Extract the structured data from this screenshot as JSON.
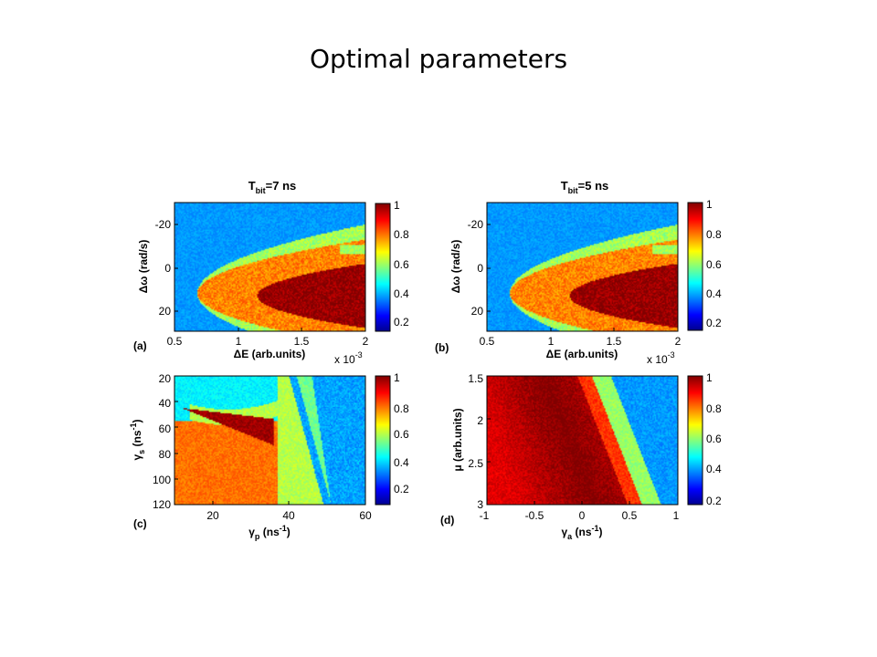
{
  "slide": {
    "title": "Optimal parameters"
  },
  "colormap": {
    "stops": [
      "#00008f",
      "#0000ff",
      "#00ffff",
      "#ffff00",
      "#ff0000",
      "#800000"
    ],
    "ticks": [
      "0.2",
      "0.4",
      "0.6",
      "0.8",
      "1"
    ]
  },
  "chart_data": [
    {
      "type": "heatmap",
      "panel_label": "(a)",
      "title_main": "T",
      "title_sub": "bit",
      "title_rest": "=7 ns",
      "xlabel": "ΔE (arb.units)",
      "ylabel": "Δω (rad/s)",
      "x_multiplier_base": "x 10",
      "x_multiplier_exp": "-3",
      "xlim": [
        0.5,
        2
      ],
      "ylim": [
        -30,
        30
      ],
      "y_reversed": true,
      "xticks": [
        "0.5",
        "1",
        "1.5",
        "2"
      ],
      "yticks": [
        "-20",
        "0",
        "20"
      ],
      "clim": [
        0.1,
        1
      ],
      "model": "wedge"
    },
    {
      "type": "heatmap",
      "panel_label": "(b)",
      "title_main": "T",
      "title_sub": "bit",
      "title_rest": "=5 ns",
      "xlabel": "ΔE (arb.units)",
      "ylabel": "Δω (rad/s)",
      "x_multiplier_base": "x 10",
      "x_multiplier_exp": "-3",
      "xlim": [
        0.5,
        2
      ],
      "ylim": [
        -30,
        30
      ],
      "y_reversed": true,
      "xticks": [
        "0.5",
        "1",
        "1.5",
        "2"
      ],
      "yticks": [
        "-20",
        "0",
        "20"
      ],
      "clim": [
        0.1,
        1
      ],
      "model": "wedge"
    },
    {
      "type": "heatmap",
      "panel_label": "(c)",
      "xlabel_main": "γ",
      "xlabel_sub": "p",
      "xlabel_rest": " (ns",
      "xlabel_sup": "-1",
      "xlabel_end": ")",
      "ylabel_main": "γ",
      "ylabel_sub": "s",
      "ylabel_rest": " (ns",
      "ylabel_sup": "-1",
      "ylabel_end": ")",
      "xlim": [
        10,
        60
      ],
      "ylim": [
        20,
        120
      ],
      "y_reversed": true,
      "xticks": [
        "20",
        "40",
        "60"
      ],
      "yticks": [
        "20",
        "40",
        "60",
        "80",
        "100",
        "120"
      ],
      "clim": [
        0.1,
        1
      ],
      "model": "gamma"
    },
    {
      "type": "heatmap",
      "panel_label": "(d)",
      "xlabel_main": "γ",
      "xlabel_sub": "a",
      "xlabel_rest": " (ns",
      "xlabel_sup": "-1",
      "xlabel_end": ")",
      "ylabel": "μ (arb.units)",
      "xlim": [
        -1,
        1
      ],
      "ylim": [
        1.5,
        3
      ],
      "y_reversed": true,
      "xticks": [
        "-1",
        "-0.5",
        "0",
        "0.5",
        "1"
      ],
      "yticks": [
        "1.5",
        "2",
        "2.5",
        "3"
      ],
      "clim": [
        0.1,
        1
      ],
      "model": "mu"
    }
  ]
}
